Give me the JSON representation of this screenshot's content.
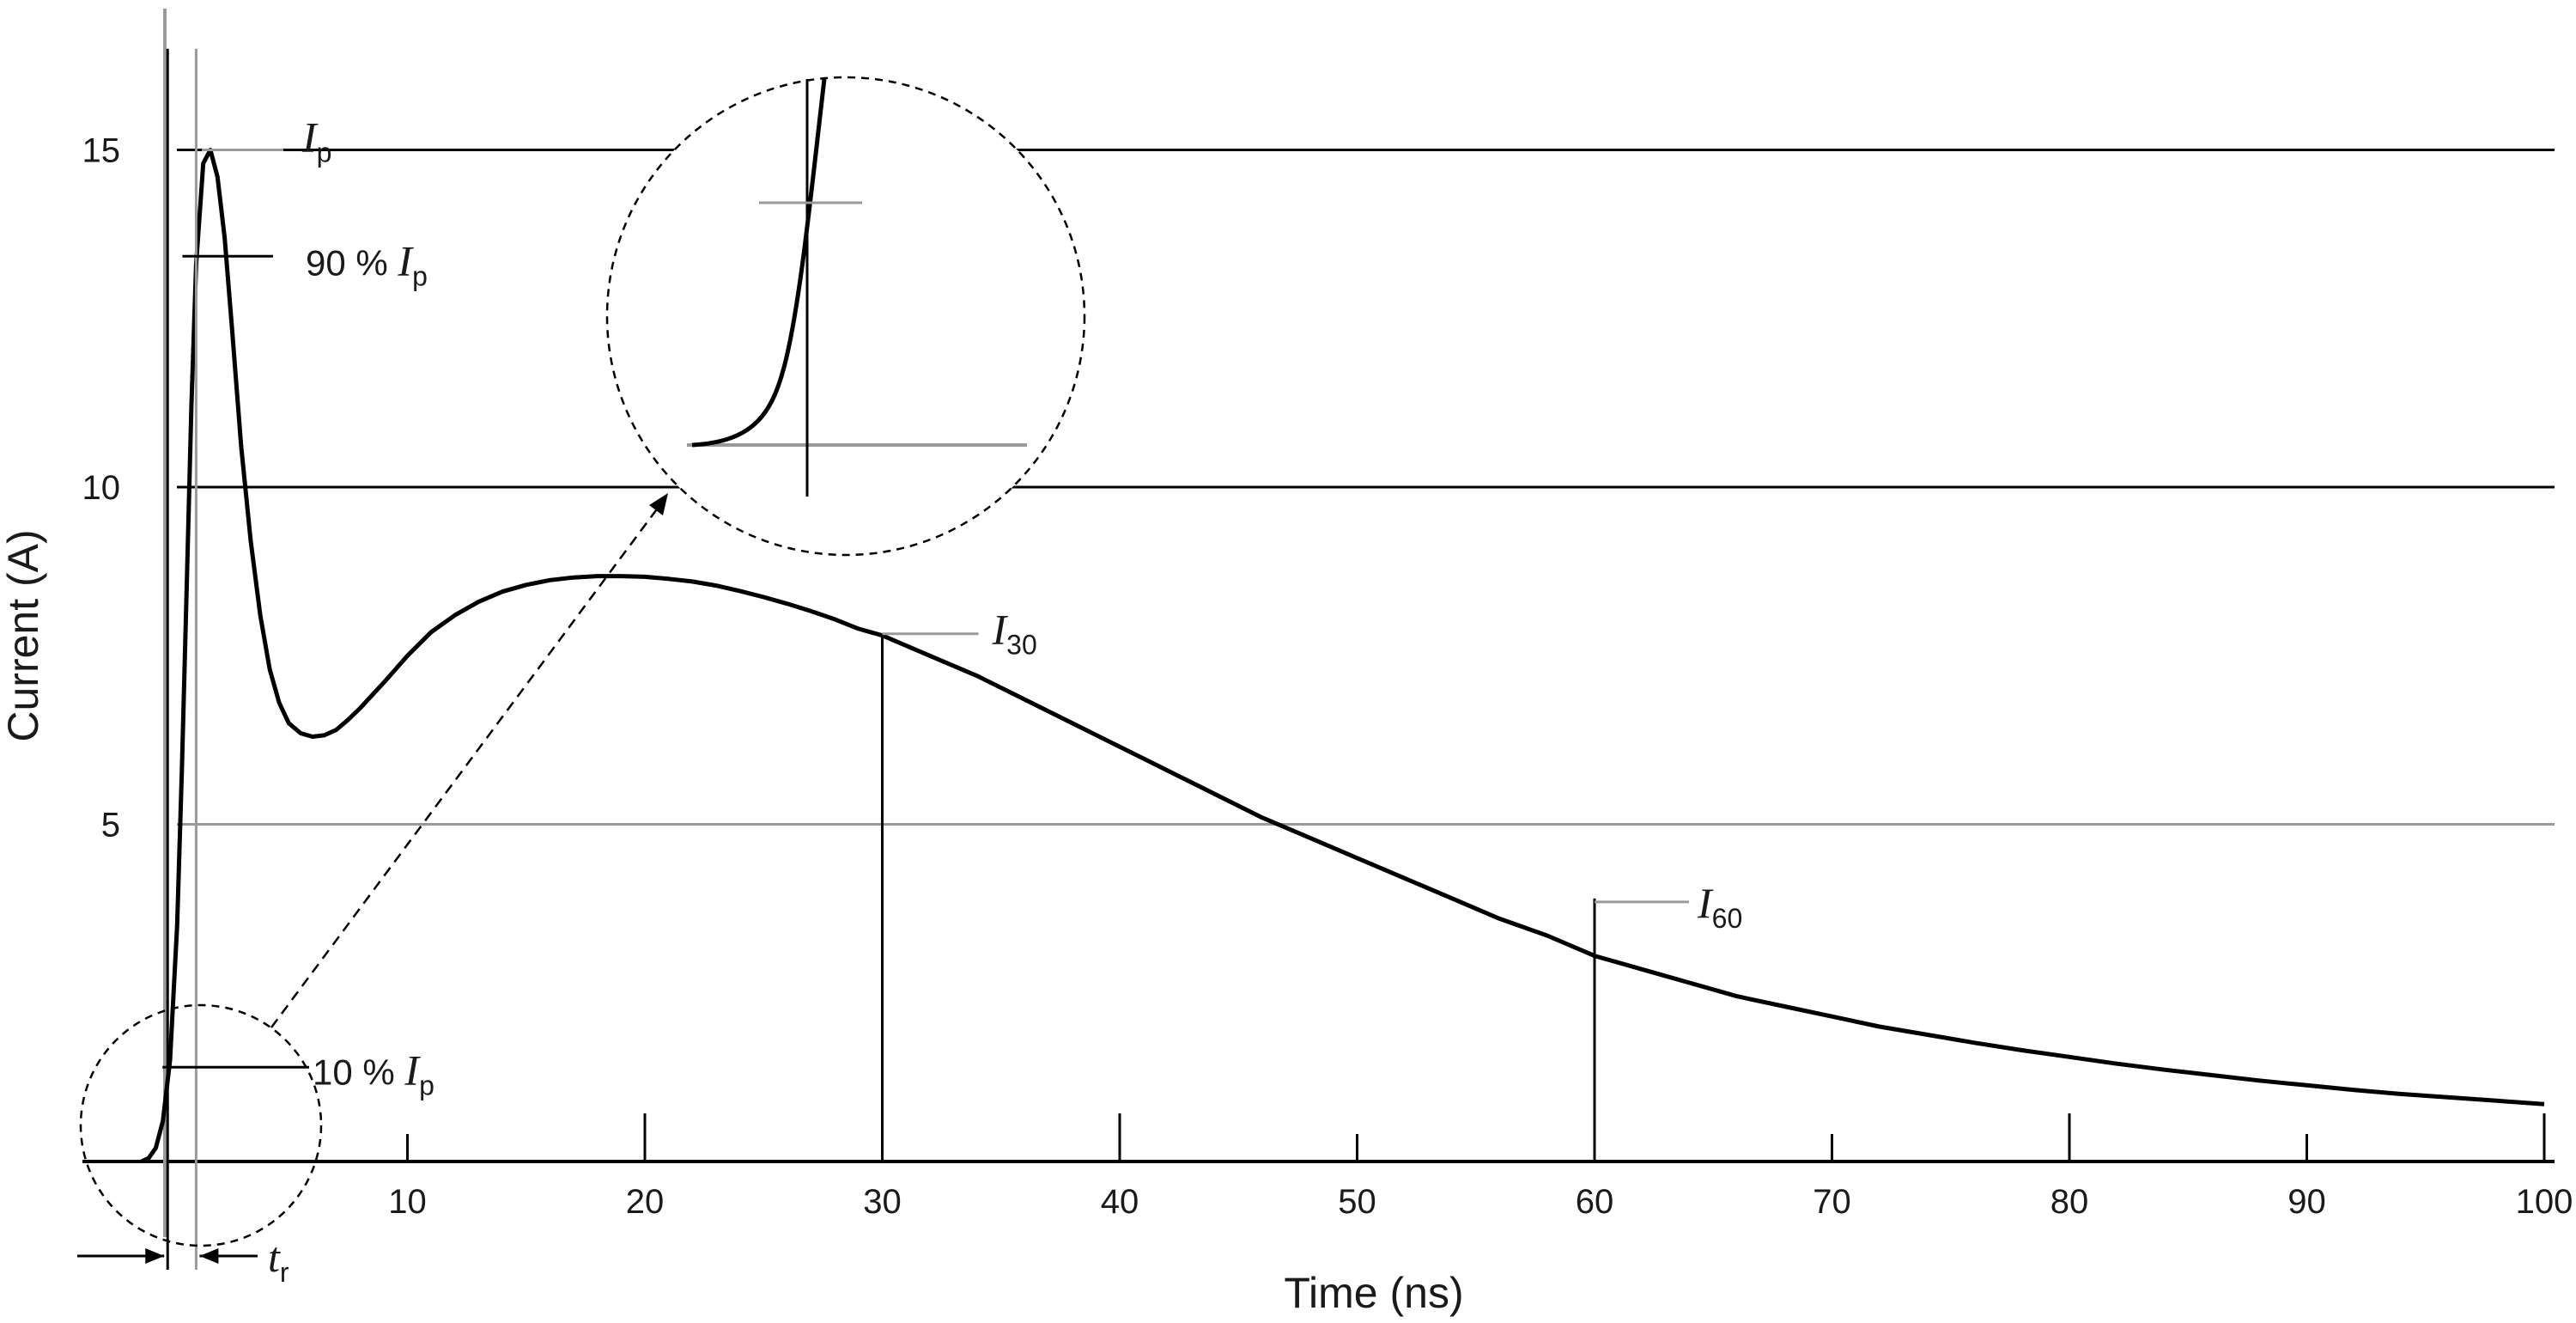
{
  "chart_data": {
    "type": "line",
    "title": "",
    "xlabel": "Time   (ns)",
    "ylabel": "Current   (A)",
    "xlim": [
      -8,
      100
    ],
    "ylim": [
      0,
      16.5
    ],
    "x_ticks": [
      10,
      20,
      30,
      40,
      50,
      60,
      70,
      80,
      90,
      100
    ],
    "y_ticks": [
      5,
      10,
      15
    ],
    "grid_y": [
      5,
      10,
      15
    ],
    "series": [
      {
        "color": "#000000",
        "x": [
          -1.2,
          -0.9,
          -0.6,
          -0.3,
          0,
          0.3,
          0.5,
          0.7,
          0.9,
          1.1,
          1.4,
          1.7,
          2.0,
          2.3,
          2.6,
          3.0,
          3.4,
          3.8,
          4.2,
          4.6,
          5.0,
          5.5,
          6.0,
          6.5,
          7.0,
          7.5,
          8.0,
          9,
          10,
          11,
          12,
          13,
          14,
          15,
          16,
          17,
          18,
          19,
          20,
          21,
          22,
          23,
          24,
          25,
          26,
          27,
          28,
          29,
          30,
          32,
          34,
          36,
          38,
          40,
          42,
          44,
          46,
          48,
          50,
          52,
          54,
          56,
          58,
          60,
          62,
          64,
          66,
          68,
          70,
          72,
          74,
          76,
          78,
          80,
          82,
          84,
          86,
          88,
          90,
          92,
          94,
          96,
          98,
          100
        ],
        "values": [
          0,
          0.05,
          0.2,
          0.6,
          1.5,
          3.5,
          5.8,
          8.5,
          11.2,
          13.3,
          14.8,
          15.0,
          14.6,
          13.7,
          12.4,
          10.6,
          9.2,
          8.1,
          7.3,
          6.8,
          6.5,
          6.35,
          6.3,
          6.32,
          6.4,
          6.55,
          6.72,
          7.1,
          7.5,
          7.85,
          8.1,
          8.3,
          8.45,
          8.55,
          8.62,
          8.66,
          8.68,
          8.68,
          8.67,
          8.64,
          8.6,
          8.54,
          8.46,
          8.37,
          8.27,
          8.16,
          8.04,
          7.9,
          7.8,
          7.5,
          7.2,
          6.85,
          6.5,
          6.15,
          5.8,
          5.45,
          5.1,
          4.8,
          4.5,
          4.2,
          3.9,
          3.6,
          3.35,
          3.05,
          2.85,
          2.65,
          2.45,
          2.3,
          2.15,
          2.0,
          1.88,
          1.76,
          1.65,
          1.55,
          1.45,
          1.36,
          1.28,
          1.2,
          1.13,
          1.06,
          1.0,
          0.95,
          0.9,
          0.85
        ]
      }
    ],
    "annotations": [
      {
        "id": "ip",
        "symbol": "I",
        "sub": "p",
        "prefix": "",
        "x": 1.7,
        "y": 15.0
      },
      {
        "id": "p90",
        "symbol": "I",
        "sub": "p",
        "prefix": "90 % ",
        "x": 1.1,
        "y": 13.5
      },
      {
        "id": "p10",
        "symbol": "I",
        "sub": "p",
        "prefix": "10 % ",
        "x": -0.1,
        "y": 1.5
      },
      {
        "id": "i30",
        "symbol": "I",
        "sub": "30",
        "prefix": "",
        "x": 30,
        "y": 7.8
      },
      {
        "id": "i60",
        "symbol": "I",
        "sub": "60",
        "prefix": "",
        "x": 60,
        "y": 3.9
      },
      {
        "id": "zoom10",
        "symbol": "I",
        "sub": "p",
        "prefix": "10 % ",
        "x": null,
        "y": null
      },
      {
        "id": "tr",
        "symbol": "t",
        "sub": "r",
        "prefix": "",
        "x": null,
        "y": null
      }
    ],
    "rise_time_markers": [
      -0.1,
      1.1
    ]
  }
}
